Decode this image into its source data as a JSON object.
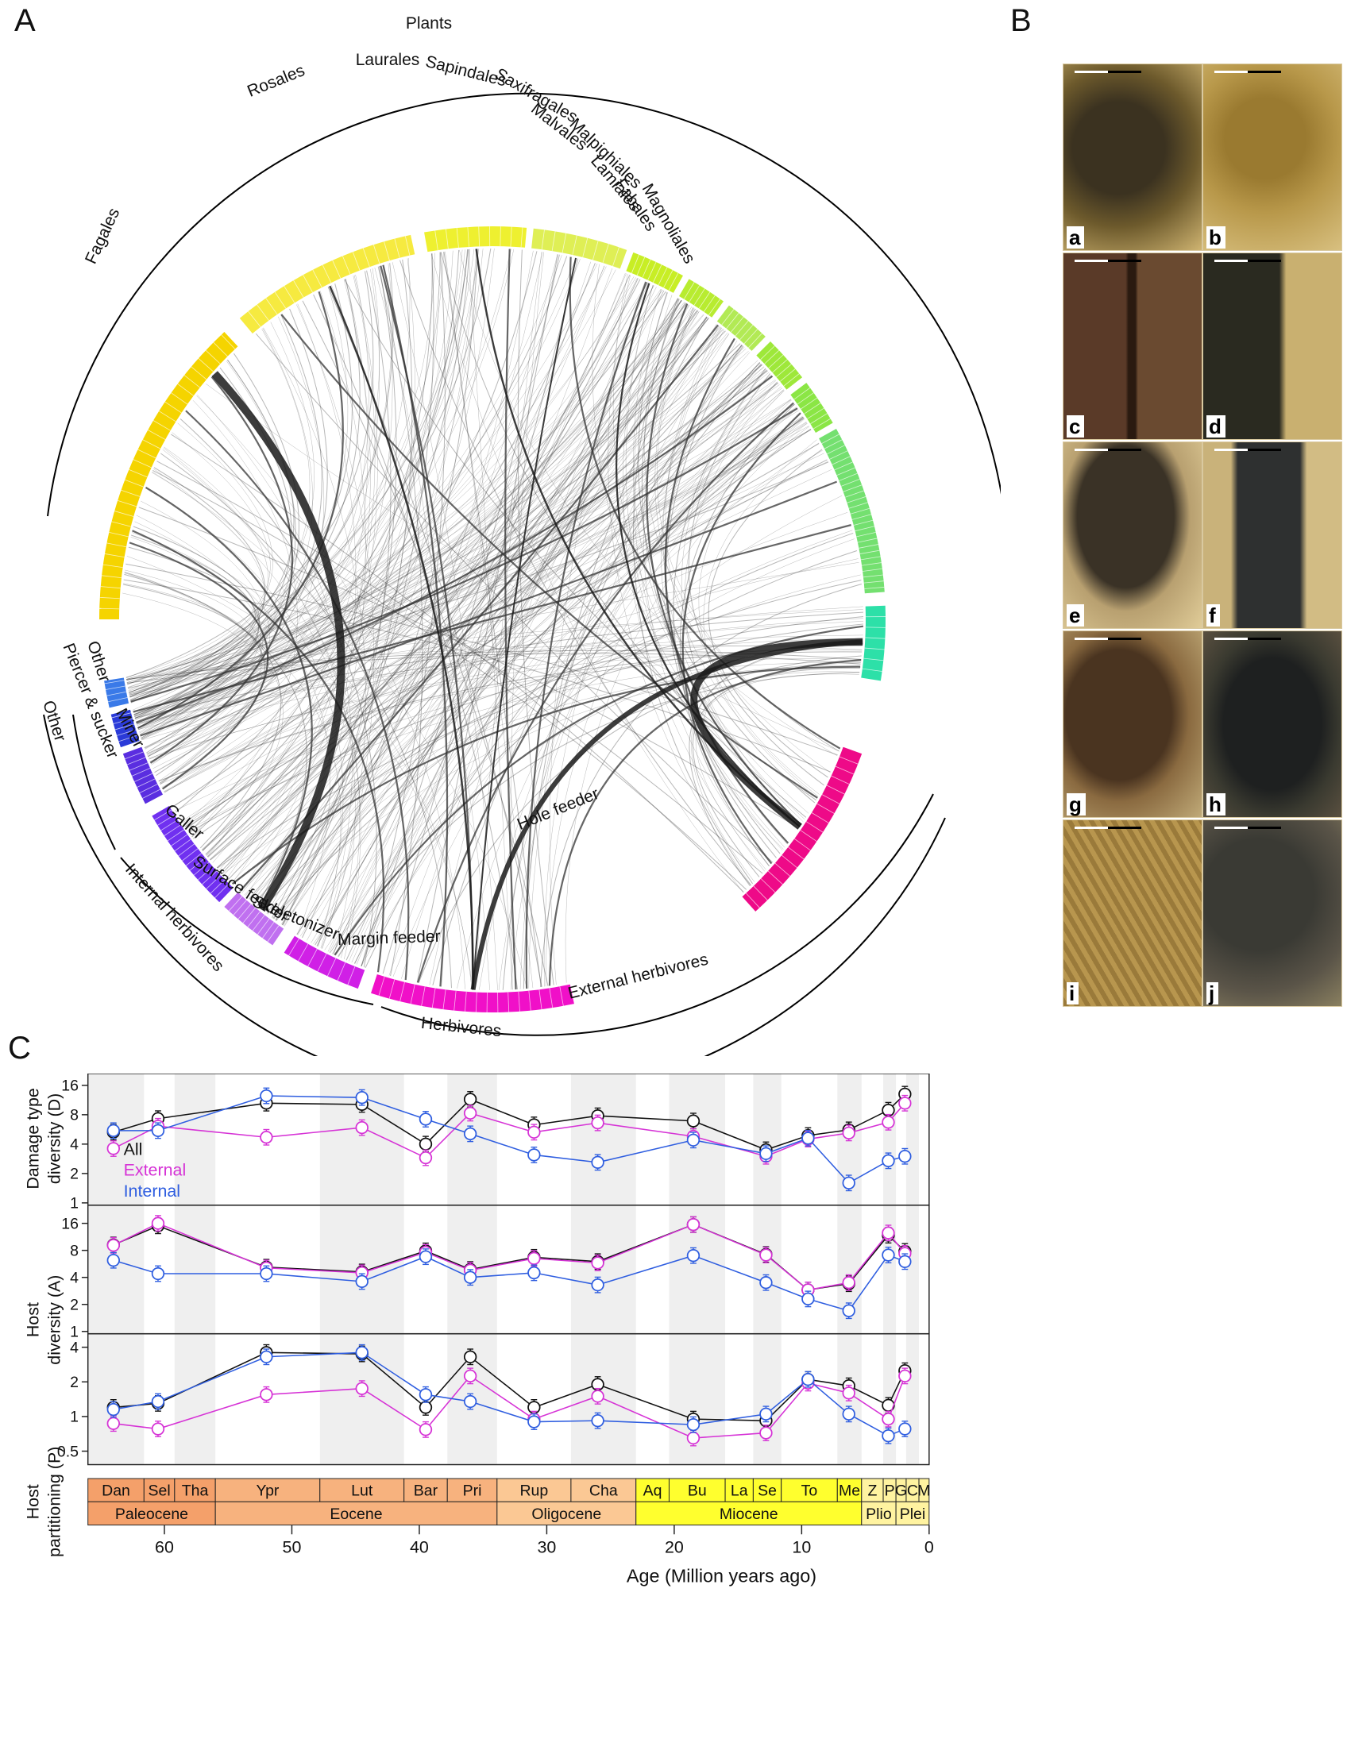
{
  "panels": {
    "A": "A",
    "B": "B",
    "C": "C"
  },
  "network": {
    "plants_label": "Plants",
    "plant_orders": [
      {
        "name": "Fagales",
        "color": "#f5d400"
      },
      {
        "name": "Rosales",
        "color": "#f6ea40"
      },
      {
        "name": "Laurales",
        "color": "#eef030"
      },
      {
        "name": "Sapindales",
        "color": "#dfef55"
      },
      {
        "name": "Saxifragales",
        "color": "#c8ee25"
      },
      {
        "name": "Malvales",
        "color": "#b8ec30"
      },
      {
        "name": "Malpighiales",
        "color": "#b2ea55"
      },
      {
        "name": "Lamiales",
        "color": "#9ee83a"
      },
      {
        "name": "Fabales",
        "color": "#8be645"
      },
      {
        "name": "Magnoliales",
        "color": "#74e070"
      }
    ],
    "other_plants_color": "#2de0a8",
    "insect_groups": [
      {
        "name": "Hole feeder",
        "color": "#ee0a88"
      },
      {
        "name": "Margin feeder",
        "color": "#f010c8"
      },
      {
        "name": "Skeletonizer",
        "color": "#d020e6"
      },
      {
        "name": "Surface feeder",
        "color": "#c070f0"
      },
      {
        "name": "Galler",
        "color": "#7030f0"
      },
      {
        "name": "Miner",
        "color": "#5a2ee0"
      },
      {
        "name": "Piercer & sucker",
        "color": "#2a3ad8"
      },
      {
        "name": "Other",
        "color": "#3a7ae8"
      }
    ],
    "guild_arcs": {
      "other": "Other",
      "internal": "Internal herbivores",
      "external": "External herbivores",
      "herbivores": "Herbivores"
    }
  },
  "photos": [
    "a",
    "b",
    "c",
    "d",
    "e",
    "f",
    "g",
    "h",
    "i",
    "j"
  ],
  "chart_data": {
    "type": "line",
    "xlabel": "Age (Million years ago)",
    "xlim": [
      66,
      0
    ],
    "x_ticks": [
      60,
      50,
      40,
      30,
      20,
      10,
      0
    ],
    "legend": [
      {
        "name": "All",
        "color": "#111111"
      },
      {
        "name": "External",
        "color": "#d633d6"
      },
      {
        "name": "Internal",
        "color": "#2f5ee0"
      }
    ],
    "panels": [
      {
        "ylabel": [
          "Damage type",
          "diversity (D)"
        ],
        "y_ticks": [
          1,
          2,
          4,
          8,
          16
        ],
        "ylim": [
          1,
          20
        ],
        "series": [
          {
            "name": "All",
            "x": [
              64,
              60.5,
              52,
              44.5,
              39.5,
              36,
              31,
              26,
              18.5,
              12.8,
              9.5,
              6.3,
              3.2,
              1.9
            ],
            "y": [
              5.3,
              7.3,
              10.5,
              10.2,
              4.0,
              11.5,
              6.3,
              7.8,
              6.9,
              3.5,
              4.9,
              5.6,
              8.9,
              13.0
            ]
          },
          {
            "name": "External",
            "x": [
              64,
              60.5,
              52,
              44.5,
              39.5,
              36,
              31,
              26,
              18.5,
              12.8,
              9.5,
              6.3,
              3.2,
              1.9
            ],
            "y": [
              3.6,
              6.1,
              4.7,
              5.9,
              2.9,
              8.3,
              5.3,
              6.6,
              4.8,
              3.0,
              4.5,
              5.2,
              6.7,
              10.5
            ]
          },
          {
            "name": "Internal",
            "x": [
              64,
              60.5,
              52,
              44.5,
              39.5,
              36,
              31,
              26,
              18.5,
              12.8,
              9.5,
              6.3,
              3.2,
              1.9
            ],
            "y": [
              5.5,
              5.5,
              12.5,
              12.0,
              7.2,
              5.1,
              3.1,
              2.6,
              4.4,
              3.2,
              4.6,
              1.6,
              2.7,
              3.0
            ]
          }
        ]
      },
      {
        "ylabel": [
          "Host",
          "diversity (A)"
        ],
        "y_ticks": [
          1,
          2,
          4,
          8,
          16
        ],
        "ylim": [
          1,
          24
        ],
        "series": [
          {
            "name": "All",
            "x": [
              64,
              60.5,
              52,
              44.5,
              39.5,
              36,
              31,
              26,
              18.5,
              12.8,
              9.5,
              6.3,
              3.2,
              1.9
            ],
            "y": [
              9.2,
              15.0,
              5.2,
              4.6,
              7.9,
              4.9,
              6.7,
              6.0,
              15.5,
              7.2,
              2.9,
              3.4,
              11.8,
              7.8
            ]
          },
          {
            "name": "External",
            "x": [
              64,
              60.5,
              52,
              44.5,
              39.5,
              36,
              31,
              26,
              18.5,
              12.8,
              9.5,
              6.3,
              3.2,
              1.9
            ],
            "y": [
              9.1,
              16.0,
              5.1,
              4.5,
              7.6,
              4.8,
              6.5,
              5.8,
              15.5,
              7.1,
              2.9,
              3.5,
              12.5,
              7.4
            ]
          },
          {
            "name": "Internal",
            "x": [
              64,
              60.5,
              52,
              44.5,
              39.5,
              36,
              31,
              26,
              18.5,
              12.8,
              9.5,
              6.3,
              3.2,
              1.9
            ],
            "y": [
              6.2,
              4.4,
              4.4,
              3.6,
              6.8,
              4.0,
              4.5,
              3.3,
              7.0,
              3.5,
              2.3,
              1.7,
              7.1,
              6.0
            ]
          }
        ]
      },
      {
        "ylabel": [
          "Host",
          "partitioning (P)"
        ],
        "y_ticks": [
          0.5,
          1,
          2,
          4
        ],
        "ylim": [
          0.4,
          5
        ],
        "series": [
          {
            "name": "All",
            "x": [
              64,
              60.5,
              52,
              44.5,
              39.5,
              36,
              31,
              26,
              18.5,
              12.8,
              9.5,
              6.3,
              3.2,
              1.9
            ],
            "y": [
              1.2,
              1.3,
              3.6,
              3.5,
              1.2,
              3.3,
              1.2,
              1.9,
              0.95,
              0.92,
              2.1,
              1.85,
              1.25,
              2.5
            ]
          },
          {
            "name": "External",
            "x": [
              64,
              60.5,
              52,
              44.5,
              39.5,
              36,
              31,
              26,
              18.5,
              12.8,
              9.5,
              6.3,
              3.2,
              1.9
            ],
            "y": [
              0.87,
              0.78,
              1.55,
              1.75,
              0.77,
              2.25,
              0.95,
              1.5,
              0.65,
              0.72,
              1.95,
              1.6,
              0.95,
              2.25
            ]
          },
          {
            "name": "Internal",
            "x": [
              64,
              60.5,
              52,
              44.5,
              39.5,
              36,
              31,
              26,
              18.5,
              12.8,
              9.5,
              6.3,
              3.2,
              1.9
            ],
            "y": [
              1.15,
              1.35,
              3.3,
              3.6,
              1.55,
              1.35,
              0.9,
              0.92,
              0.85,
              1.05,
              2.1,
              1.05,
              0.68,
              0.78
            ]
          }
        ]
      }
    ],
    "stages": [
      {
        "name": "Dan",
        "start": 66,
        "end": 61.6
      },
      {
        "name": "Sel",
        "start": 61.6,
        "end": 59.2
      },
      {
        "name": "Tha",
        "start": 59.2,
        "end": 56.0
      },
      {
        "name": "Ypr",
        "start": 56.0,
        "end": 47.8
      },
      {
        "name": "Lut",
        "start": 47.8,
        "end": 41.2
      },
      {
        "name": "Bar",
        "start": 41.2,
        "end": 37.8
      },
      {
        "name": "Pri",
        "start": 37.8,
        "end": 33.9
      },
      {
        "name": "Rup",
        "start": 33.9,
        "end": 28.1
      },
      {
        "name": "Cha",
        "start": 28.1,
        "end": 23.0
      },
      {
        "name": "Aq",
        "start": 23.0,
        "end": 20.4
      },
      {
        "name": "Bu",
        "start": 20.4,
        "end": 16.0
      },
      {
        "name": "La",
        "start": 16.0,
        "end": 13.8
      },
      {
        "name": "Se",
        "start": 13.8,
        "end": 11.6
      },
      {
        "name": "To",
        "start": 11.6,
        "end": 7.2
      },
      {
        "name": "Me",
        "start": 7.2,
        "end": 5.3
      },
      {
        "name": "Z",
        "start": 5.3,
        "end": 3.6
      },
      {
        "name": "P",
        "start": 3.6,
        "end": 2.6
      },
      {
        "name": "G",
        "start": 2.6,
        "end": 1.8
      },
      {
        "name": "C",
        "start": 1.8,
        "end": 0.8
      },
      {
        "name": "M",
        "start": 0.8,
        "end": 0
      }
    ],
    "epochs": [
      {
        "name": "Paleocene",
        "start": 66,
        "end": 56.0
      },
      {
        "name": "Eocene",
        "start": 56.0,
        "end": 33.9
      },
      {
        "name": "Oligocene",
        "start": 33.9,
        "end": 23.0
      },
      {
        "name": "Miocene",
        "start": 23.0,
        "end": 5.3
      },
      {
        "name": "Plio",
        "start": 5.3,
        "end": 2.6
      },
      {
        "name": "Plei",
        "start": 2.6,
        "end": 0
      }
    ]
  }
}
